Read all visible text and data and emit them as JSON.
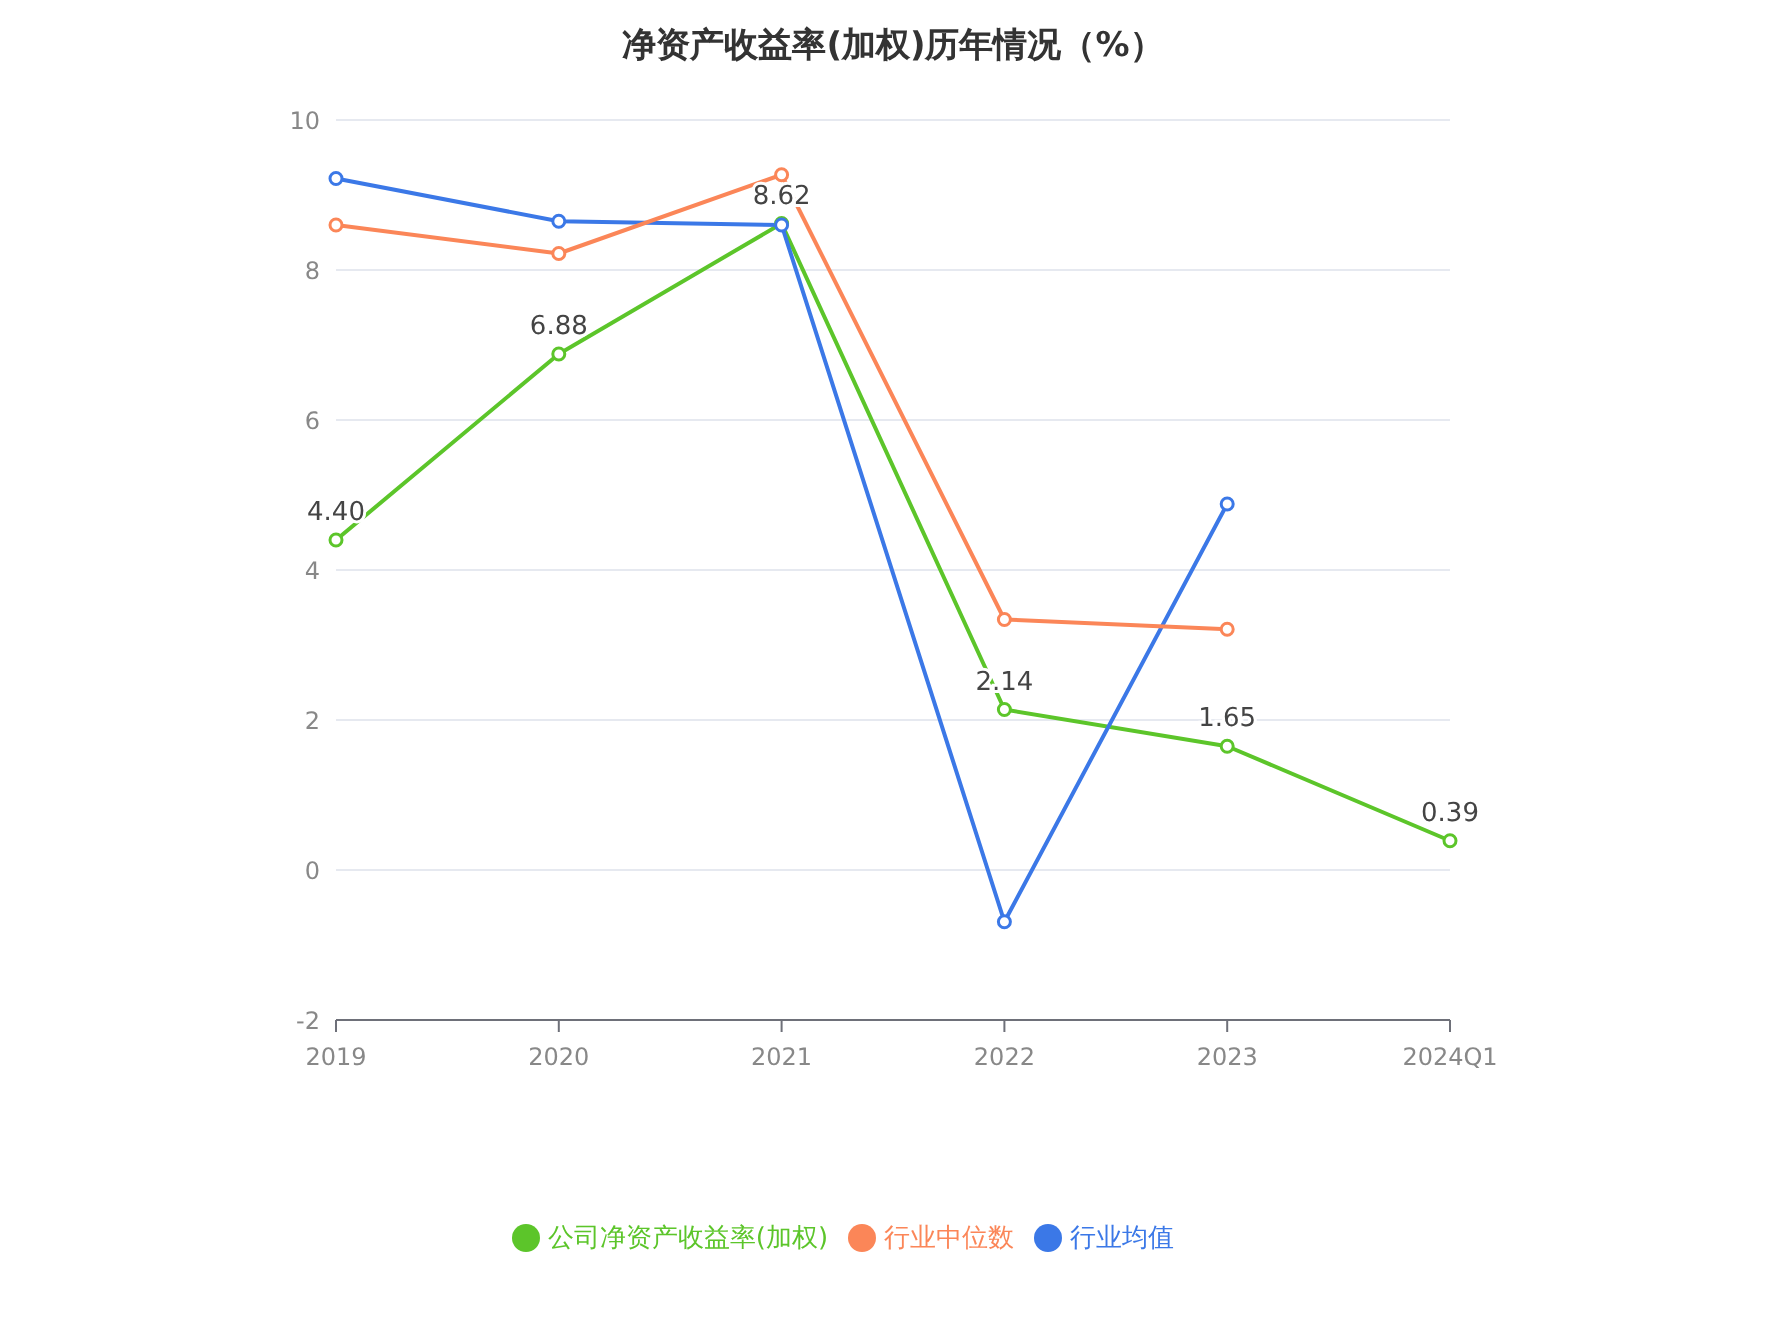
{
  "chart_data": {
    "type": "line",
    "title": "净资产收益率(加权)历年情况（%）",
    "categories": [
      "2019",
      "2020",
      "2021",
      "2022",
      "2023",
      "2024Q1"
    ],
    "series": [
      {
        "name": "公司净资产收益率(加权)",
        "color": "#5cc52a",
        "values": [
          4.4,
          6.88,
          8.62,
          2.14,
          1.65,
          0.39
        ],
        "value_labels": [
          "4.40",
          "6.88",
          "8.62",
          "2.14",
          "1.65",
          "0.39"
        ]
      },
      {
        "name": "行业均值",
        "color": "#3b78e7",
        "values": [
          9.22,
          8.65,
          8.6,
          -0.69,
          4.88,
          null
        ]
      },
      {
        "name": "行业中位数",
        "color": "#fb8658",
        "values": [
          8.6,
          8.22,
          9.27,
          3.34,
          3.21,
          null
        ]
      }
    ],
    "ylim": [
      -2,
      10
    ],
    "yticks": [
      -2,
      0,
      2,
      4,
      6,
      8,
      10
    ],
    "grid": "y",
    "legend": "bottom",
    "marker": "circle",
    "line_style": "solid"
  }
}
